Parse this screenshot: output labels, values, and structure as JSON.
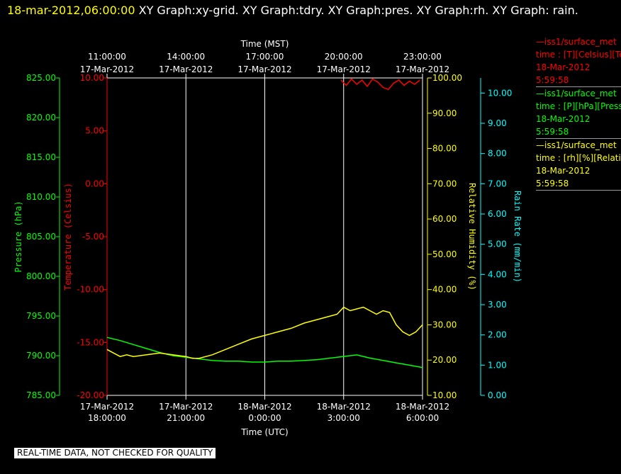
{
  "header": {
    "timestamp": "18-mar-2012,06:00:00",
    "graphs_text": " XY Graph:xy-grid.  XY Graph:tdry.  XY Graph:pres.  XY Graph:rh.  XY Graph: rain."
  },
  "legend": {
    "items": [
      {
        "line1": "—iss1/surface_met",
        "line2": "time : [T][Celsius][Temp",
        "line3": "18-Mar-2012",
        "line4": "5:59:58",
        "color": "#ff0000"
      },
      {
        "line1": "—iss1/surface_met",
        "line2": "time : [P][hPa][Pressure",
        "line3": "18-Mar-2012",
        "line4": "5:59:58",
        "color": "#00ff00"
      },
      {
        "line1": "—iss1/surface_met",
        "line2": "time : [rh][%][Relative",
        "line3": "18-Mar-2012",
        "line4": "5:59:58",
        "color": "#ffff00"
      }
    ]
  },
  "notice": "REAL-TIME DATA, NOT CHECKED FOR QUALITY",
  "chart_data": {
    "type": "line",
    "x_unit": "hours (UTC) from 17-Mar-2012 18:00:00",
    "xlim": [
      0,
      12
    ],
    "bottom_axis": {
      "label": "Time (UTC)",
      "ticks": [
        {
          "x": 0,
          "date": "17-Mar-2012",
          "time": "18:00:00"
        },
        {
          "x": 3,
          "date": "17-Mar-2012",
          "time": "21:00:00"
        },
        {
          "x": 6,
          "date": "18-Mar-2012",
          "time": "0:00:00"
        },
        {
          "x": 9,
          "date": "18-Mar-2012",
          "time": "3:00:00"
        },
        {
          "x": 12,
          "date": "18-Mar-2012",
          "time": "6:00:00"
        }
      ]
    },
    "top_axis": {
      "label": "Time (MST)",
      "ticks": [
        {
          "x": 0,
          "time": "11:00:00",
          "date": "17-Mar-2012"
        },
        {
          "x": 3,
          "time": "14:00:00",
          "date": "17-Mar-2012"
        },
        {
          "x": 6,
          "time": "17:00:00",
          "date": "17-Mar-2012"
        },
        {
          "x": 9,
          "time": "20:00:00",
          "date": "17-Mar-2012"
        },
        {
          "x": 12,
          "time": "23:00:00",
          "date": "17-Mar-2012"
        }
      ]
    },
    "y_axes": [
      {
        "id": "pressure",
        "label": "Pressure (hPa)",
        "color": "#00ff00",
        "ylim": [
          785,
          825
        ],
        "ticks": [
          "785.00",
          "790.00",
          "795.00",
          "800.00",
          "805.00",
          "810.00",
          "815.00",
          "820.00",
          "825.00"
        ]
      },
      {
        "id": "temperature",
        "label": "Temperature (Celsius)",
        "color": "#ff0000",
        "ylim": [
          -20,
          10
        ],
        "ticks": [
          "-20.00",
          "-15.00",
          "-10.00",
          "-5.00",
          "0.00",
          "5.00",
          "10.00"
        ]
      },
      {
        "id": "humidity",
        "label": "Relative Humidity (%)",
        "color": "#ffff00",
        "ylim": [
          10,
          100
        ],
        "ticks": [
          "10.00",
          "20.00",
          "30.00",
          "40.00",
          "50.00",
          "60.00",
          "70.00",
          "80.00",
          "90.00",
          "100.00"
        ]
      },
      {
        "id": "rain",
        "label": "Rain Rate (mm/min)",
        "color": "#00ffff",
        "ylim": [
          0,
          10.5
        ],
        "ticks": [
          "0.00",
          "1.00",
          "2.00",
          "3.00",
          "4.00",
          "5.00",
          "6.00",
          "7.00",
          "8.00",
          "9.00",
          "10.00"
        ]
      }
    ],
    "grid": true,
    "series": [
      {
        "axis": "pressure",
        "color": "#00ff00",
        "x": [
          0,
          0.5,
          1,
          1.5,
          2,
          2.5,
          3,
          3.5,
          4,
          4.5,
          5,
          5.5,
          6,
          6.5,
          7,
          7.5,
          8,
          8.5,
          9,
          9.5,
          10,
          10.5,
          11,
          11.5,
          12
        ],
        "y": [
          792.3,
          791.9,
          791.4,
          790.9,
          790.4,
          790.0,
          789.8,
          789.6,
          789.4,
          789.3,
          789.3,
          789.2,
          789.2,
          789.3,
          789.3,
          789.4,
          789.5,
          789.7,
          789.9,
          790.1,
          789.7,
          789.4,
          789.1,
          788.8,
          788.5
        ]
      },
      {
        "axis": "humidity",
        "color": "#ffff00",
        "x": [
          0,
          0.25,
          0.5,
          0.75,
          1,
          1.5,
          2,
          2.5,
          3,
          3.25,
          3.5,
          4,
          4.5,
          5,
          5.5,
          6,
          6.5,
          7,
          7.5,
          8,
          8.25,
          8.5,
          8.75,
          9,
          9.25,
          9.5,
          9.75,
          10,
          10.25,
          10.5,
          10.75,
          11,
          11.25,
          11.5,
          11.75,
          12
        ],
        "y": [
          23,
          22,
          21,
          21.5,
          21,
          21.5,
          22,
          21.5,
          21,
          20.5,
          20.5,
          21.5,
          23,
          24.5,
          26,
          27,
          28,
          29,
          30.5,
          31.5,
          32,
          32.5,
          33,
          35,
          34,
          34.5,
          35,
          34,
          33,
          34,
          33.5,
          30,
          28,
          27,
          28,
          30
        ]
      },
      {
        "axis": "temperature",
        "color": "#ff0000",
        "x": [
          8.9,
          9.1,
          9.3,
          9.5,
          9.7,
          9.9,
          10.1,
          10.3,
          10.5,
          10.7,
          10.9,
          11.1,
          11.3,
          11.5,
          11.7,
          11.9
        ],
        "y": [
          9.8,
          9.3,
          9.9,
          9.4,
          9.8,
          9.2,
          9.9,
          9.6,
          9.1,
          8.9,
          9.5,
          9.8,
          9.3,
          9.7,
          9.4,
          9.8
        ]
      }
    ]
  }
}
